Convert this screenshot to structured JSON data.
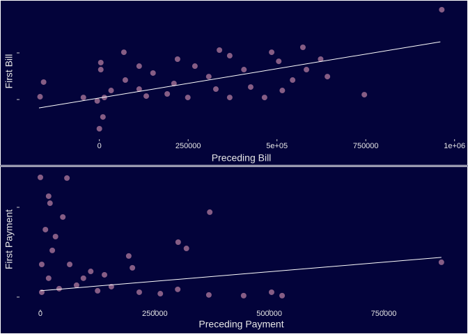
{
  "chart_data": [
    {
      "type": "scatter",
      "x_label": "Preceding Bill",
      "y_label": "First Bill",
      "point_color": "#f2a7c3",
      "fit_color": "#ffffff",
      "xlim": [
        -270000,
        1030000
      ],
      "ylim": [
        -425000,
        1030000
      ],
      "xticks": [
        0,
        250000,
        {
          "value": 500000,
          "label": "5e+05"
        },
        750000,
        {
          "value": 1000000,
          "label": "1e+06"
        }
      ],
      "yticks": [
        0,
        500000
      ],
      "x": [
        964000,
        -167000,
        -157000,
        0,
        10000,
        746000,
        69000,
        338000,
        573000,
        505000,
        623000,
        407000,
        308000,
        210000,
        112000,
        465000,
        367000,
        544000,
        269000,
        151000,
        73000,
        33000,
        4000,
        4000,
        14000,
        -6000,
        191000,
        642000,
        583000,
        426000,
        249000,
        328000,
        132000,
        485000,
        367000,
        515000,
        220000,
        112000,
        -45000
      ],
      "y": [
        963000,
        30000,
        187000,
        -313000,
        -187000,
        52000,
        507000,
        530000,
        560000,
        410000,
        433000,
        321000,
        246000,
        172000,
        112000,
        22000,
        22000,
        209000,
        358000,
        284000,
        209000,
        97000,
        321000,
        396000,
        22000,
        -15000,
        60000,
        246000,
        321000,
        134000,
        22000,
        112000,
        37000,
        507000,
        470000,
        97000,
        433000,
        358000,
        22000
      ],
      "fit": {
        "x": [
          -170000,
          960000
        ],
        "y": [
          -90000,
          619000
        ]
      }
    },
    {
      "type": "scatter",
      "x_label": "Preceding Payment",
      "y_label": "First Payment",
      "point_color": "#f2a7c3",
      "fit_color": "#ffffff",
      "xlim": [
        -80600,
        928000
      ],
      "ylim": [
        -70000,
        713000
      ],
      "xticks": [
        0,
        250000,
        500000,
        750000
      ],
      "yticks": [
        0,
        500000
      ],
      "x": [
        0,
        58000,
        18000,
        21000,
        370000,
        49000,
        301000,
        319000,
        193000,
        201000,
        876000,
        64000,
        140000,
        94000,
        33000,
        11000,
        26000,
        79000,
        216000,
        300000,
        505000,
        528000,
        3000,
        3000,
        41000,
        125000,
        262000,
        368000,
        444000,
        155000,
        18000,
        110000
      ],
      "y": [
        667000,
        663000,
        562000,
        523000,
        473000,
        446000,
        306000,
        271000,
        229000,
        163000,
        194000,
        182000,
        124000,
        105000,
        337000,
        376000,
        260000,
        66000,
        27000,
        43000,
        27000,
        8000,
        182000,
        27000,
        47000,
        35000,
        19000,
        12000,
        8000,
        58000,
        105000,
        143000
      ],
      "fit": {
        "x": [
          0,
          876000
        ],
        "y": [
          35000,
          221000
        ]
      }
    }
  ]
}
